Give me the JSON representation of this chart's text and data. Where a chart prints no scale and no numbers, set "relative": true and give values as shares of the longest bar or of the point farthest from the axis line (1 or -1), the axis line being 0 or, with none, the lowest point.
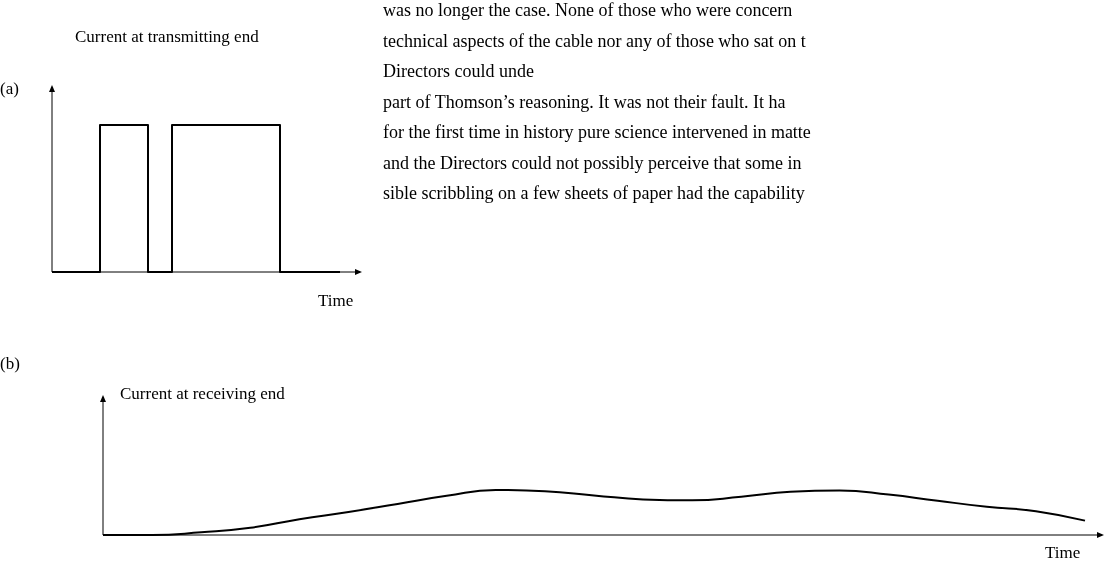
{
  "chart_data": [
    {
      "type": "step",
      "relative": true,
      "ylabel": "Current at transmitting end",
      "xlabel": "Time",
      "color": "#000000",
      "categories": [
        null,
        null,
        null,
        null,
        null,
        null,
        null,
        null,
        null,
        null,
        null,
        null,
        null,
        null,
        null,
        null,
        null,
        null,
        null,
        null,
        null,
        null,
        null,
        null,
        null
      ],
      "values": [
        0,
        0,
        0,
        0,
        1,
        1,
        1,
        1,
        0,
        0,
        1,
        1,
        1,
        1,
        1,
        1,
        1,
        1,
        1,
        0,
        0,
        0,
        0,
        0,
        0
      ],
      "annotations": [
        "(a)",
        "was no longer the case. None of those who were concern",
        "technical aspects of the cable nor any of those who sat on t",
        "Directors could unde",
        "part of Thomson’s reasoning. It was not their fault. It ha",
        "for the first time in history pure science intervened in matte",
        "and the Directors could not possibly perceive that some in",
        "sible scribbling on a few sheets of paper had the capability"
      ]
    },
    {
      "type": "line",
      "relative": true,
      "ylabel": "Current at receiving end",
      "xlabel": "Time",
      "color": "#000000",
      "categories": [
        null,
        null,
        null,
        null,
        null,
        null,
        null,
        null,
        null,
        null,
        null,
        null,
        null,
        null,
        null,
        null,
        null,
        null,
        null,
        null,
        null
      ],
      "values": [
        0,
        0,
        0.06,
        0.16,
        0.35,
        0.51,
        0.69,
        0.87,
        1,
        0.97,
        0.88,
        0.79,
        0.77,
        0.85,
        0.96,
        0.99,
        0.9,
        0.76,
        0.63,
        0.53,
        0.32
      ],
      "annotations": [
        "(b)"
      ]
    }
  ]
}
